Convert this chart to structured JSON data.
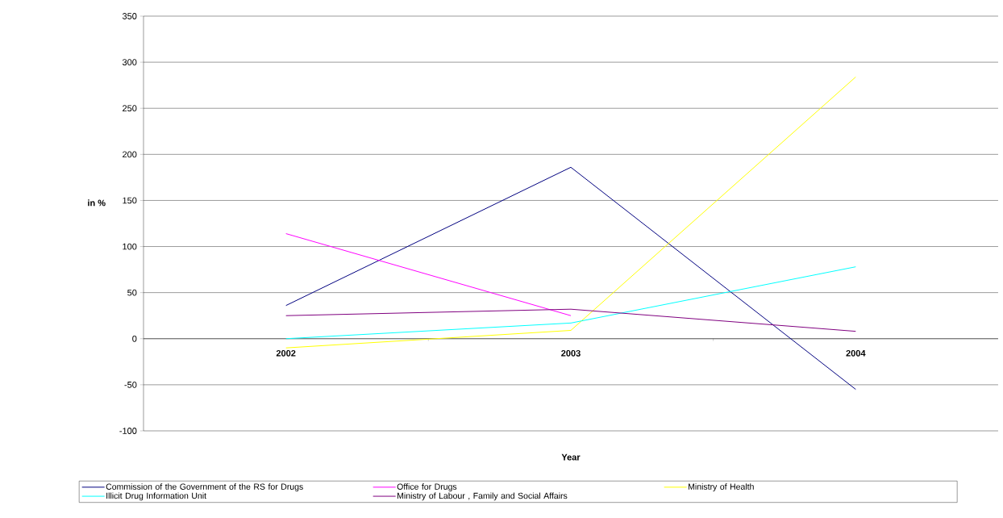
{
  "chart_data": {
    "type": "line",
    "xlabel": "Year",
    "ylabel": "in %",
    "categories": [
      "2002",
      "2003",
      "2004"
    ],
    "ylim": [
      -100,
      350
    ],
    "yticks": [
      -100,
      -50,
      0,
      50,
      100,
      150,
      200,
      250,
      300,
      350
    ],
    "grid": "y",
    "legend": "bottom",
    "series": [
      {
        "name": "Commission of the Government of the RS for Drugs",
        "color": "#000080",
        "values": [
          36,
          186,
          -55
        ]
      },
      {
        "name": "Office for Drugs",
        "color": "#ff00ff",
        "values": [
          114,
          25,
          null
        ]
      },
      {
        "name": "Ministry of Health",
        "color": "#ffff00",
        "values": [
          -10,
          9,
          284
        ]
      },
      {
        "name": "Illicit Drug Information Unit",
        "color": "#00ffff",
        "values": [
          0,
          17,
          78
        ]
      },
      {
        "name": "Ministry of Labour , Family and Social Affairs",
        "color": "#800080",
        "values": [
          25,
          32,
          8
        ]
      }
    ]
  }
}
